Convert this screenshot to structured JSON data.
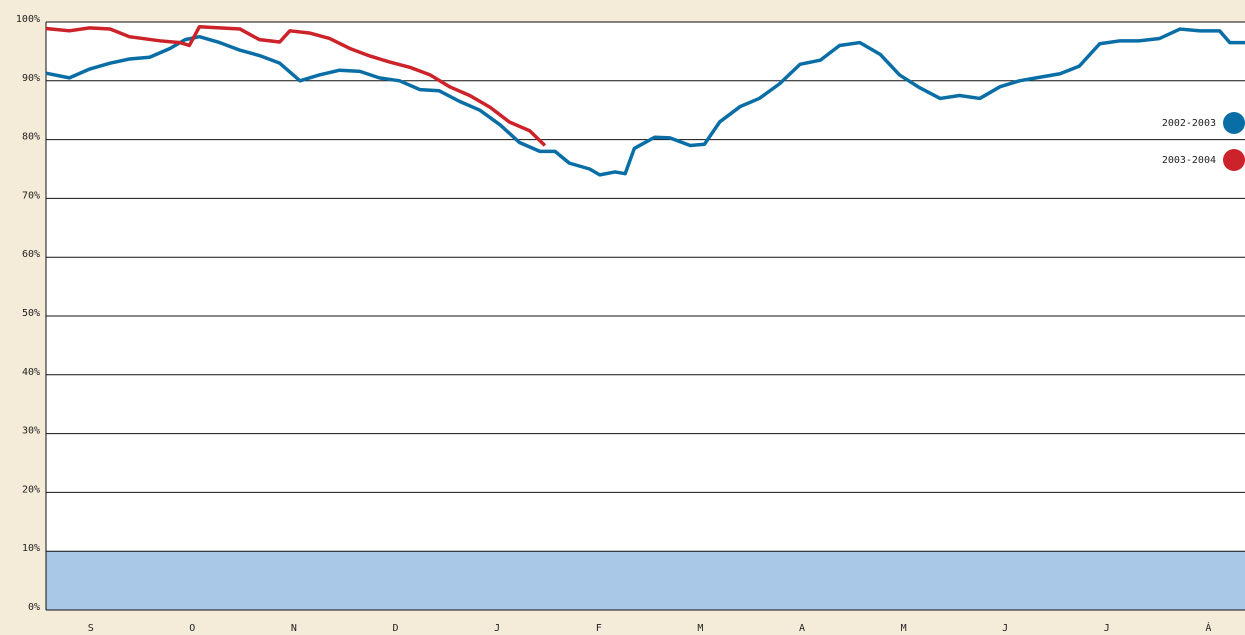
{
  "chart_data": {
    "type": "line",
    "xlim": [
      -0.44,
      11.36
    ],
    "ylim": [
      0,
      100
    ],
    "xticks": [
      {
        "value": 0,
        "label": "S"
      },
      {
        "value": 1,
        "label": "O"
      },
      {
        "value": 2,
        "label": "N"
      },
      {
        "value": 3,
        "label": "D"
      },
      {
        "value": 4,
        "label": "J"
      },
      {
        "value": 5,
        "label": "F"
      },
      {
        "value": 6,
        "label": "M"
      },
      {
        "value": 7,
        "label": "A"
      },
      {
        "value": 8,
        "label": "M"
      },
      {
        "value": 9,
        "label": "J"
      },
      {
        "value": 10,
        "label": "J"
      },
      {
        "value": 11,
        "label": "Á"
      }
    ],
    "yticks": [
      {
        "value": 0,
        "label": "0%"
      },
      {
        "value": 10,
        "label": "10%"
      },
      {
        "value": 20,
        "label": "20%"
      },
      {
        "value": 30,
        "label": "30%"
      },
      {
        "value": 40,
        "label": "40%"
      },
      {
        "value": 50,
        "label": "50%"
      },
      {
        "value": 60,
        "label": "60%"
      },
      {
        "value": 70,
        "label": "70%"
      },
      {
        "value": 80,
        "label": "80%"
      },
      {
        "value": 90,
        "label": "90%"
      },
      {
        "value": 100,
        "label": "100%"
      }
    ],
    "grid": true,
    "band": {
      "range": [
        0,
        10
      ],
      "color": "#a9c8e8"
    },
    "legend": "right",
    "series": [
      {
        "name": "2002-2003",
        "color": "#0a6ea6",
        "x": [
          -0.44,
          -0.21,
          -0.01,
          0.19,
          0.38,
          0.58,
          0.78,
          0.93,
          1.07,
          1.27,
          1.47,
          1.66,
          1.86,
          2.06,
          2.25,
          2.45,
          2.65,
          2.84,
          3.04,
          3.24,
          3.43,
          3.63,
          3.83,
          4.03,
          4.22,
          4.42,
          4.57,
          4.71,
          4.91,
          5.01,
          5.16,
          5.26,
          5.35,
          5.55,
          5.7,
          5.9,
          6.04,
          6.19,
          6.39,
          6.58,
          6.78,
          6.98,
          7.18,
          7.37,
          7.57,
          7.77,
          7.96,
          8.16,
          8.36,
          8.55,
          8.75,
          8.95,
          9.14,
          9.34,
          9.54,
          9.73,
          9.93,
          10.13,
          10.32,
          10.52,
          10.72,
          10.92,
          11.11,
          11.21,
          11.36
        ],
        "values": [
          91.3,
          90.5,
          92,
          93,
          93.7,
          94,
          95.5,
          97,
          97.5,
          96.5,
          95.2,
          94.3,
          93,
          90,
          91,
          91.8,
          91.6,
          90.5,
          90,
          88.5,
          88.3,
          86.5,
          85,
          82.5,
          79.5,
          78,
          78,
          76,
          75,
          74,
          74.5,
          74.2,
          78.5,
          80.4,
          80.3,
          79,
          79.2,
          83,
          85.6,
          87,
          89.5,
          92.8,
          93.5,
          96,
          96.5,
          94.5,
          91,
          88.8,
          87,
          87.5,
          87,
          89,
          90,
          90.6,
          91.2,
          92.5,
          96.3,
          96.8,
          96.8,
          97.2,
          98.8,
          98.5,
          98.5,
          96.5,
          96.5
        ]
      },
      {
        "name": "2003-2004",
        "color": "#cc2229",
        "x": [
          -0.44,
          -0.21,
          -0.01,
          0.19,
          0.38,
          0.68,
          0.88,
          0.97,
          1.07,
          1.27,
          1.47,
          1.66,
          1.86,
          1.96,
          2.16,
          2.35,
          2.55,
          2.75,
          2.94,
          3.14,
          3.34,
          3.53,
          3.73,
          3.93,
          4.12,
          4.32,
          4.47
        ],
        "values": [
          98.9,
          98.5,
          99,
          98.8,
          97.5,
          96.8,
          96.5,
          96,
          99.2,
          99,
          98.8,
          97,
          96.6,
          98.5,
          98.1,
          97.2,
          95.5,
          94.2,
          93.2,
          92.3,
          91,
          89,
          87.5,
          85.5,
          83,
          81.5,
          79
        ]
      }
    ]
  }
}
